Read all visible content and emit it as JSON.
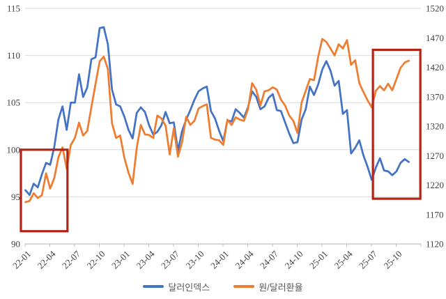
{
  "chart_data": {
    "type": "line",
    "title": "",
    "x_axis": {
      "tick_labels": [
        "22-01",
        "22-04",
        "22-07",
        "22-10",
        "23-01",
        "23-04",
        "23-07",
        "23-10",
        "24-01",
        "24-04",
        "24-07",
        "24-10",
        "25-01",
        "25-04",
        "25-07",
        "25-10"
      ],
      "label_rotation_deg": -45,
      "start_month": 0,
      "step_months_per_point": 0.5,
      "months_per_tick": 3
    },
    "y_left": {
      "tick_labels": [
        "115",
        "110",
        "105",
        "100",
        "95",
        "90"
      ],
      "min": 90,
      "max": 115,
      "step": 5
    },
    "y_right": {
      "tick_labels": [
        "1520",
        "1470",
        "1420",
        "1370",
        "1320",
        "1270",
        "1220",
        "1170",
        "1120"
      ],
      "min": 1120,
      "max": 1520,
      "step": 50
    },
    "grid": "horizontal",
    "legend_position": "bottom",
    "series": [
      {
        "name": "달러인덱스",
        "axis": "left",
        "color": "#4472C4",
        "values": [
          95.7,
          95.2,
          96.4,
          96.0,
          97.4,
          98.6,
          98.4,
          100.3,
          103.2,
          104.6,
          102.1,
          105.0,
          105.0,
          108.0,
          105.6,
          106.6,
          109.6,
          109.8,
          112.9,
          113.0,
          111.2,
          106.4,
          104.8,
          104.6,
          103.5,
          102.1,
          101.2,
          103.9,
          104.5,
          104.0,
          102.6,
          101.6,
          101.9,
          102.6,
          104.0,
          102.8,
          102.9,
          99.9,
          102.0,
          103.2,
          104.2,
          105.3,
          106.2,
          106.5,
          106.7,
          104.1,
          103.3,
          102.0,
          100.9,
          103.1,
          103.0,
          104.3,
          103.9,
          103.4,
          104.5,
          106.2,
          105.6,
          104.3,
          104.6,
          105.5,
          105.9,
          104.2,
          104.1,
          102.9,
          101.7,
          100.7,
          100.8,
          103.2,
          104.3,
          106.7,
          105.8,
          106.9,
          108.5,
          109.4,
          108.4,
          106.8,
          107.3,
          103.8,
          104.2,
          99.6,
          100.2,
          101.0,
          99.4,
          98.2,
          96.8,
          98.1,
          99.1,
          97.8,
          97.7,
          97.3,
          97.7,
          98.6,
          99.0,
          98.7
        ]
      },
      {
        "name": "원/달러환율",
        "axis": "right",
        "color": "#ED7D31",
        "values": [
          1191,
          1193,
          1206,
          1198,
          1203,
          1240,
          1214,
          1232,
          1267,
          1284,
          1248,
          1288,
          1300,
          1326,
          1304,
          1312,
          1352,
          1392,
          1430,
          1438,
          1417,
          1325,
          1300,
          1304,
          1266,
          1241,
          1222,
          1283,
          1322,
          1306,
          1305,
          1300,
          1338,
          1333,
          1321,
          1272,
          1316,
          1268,
          1293,
          1336,
          1322,
          1329,
          1350,
          1354,
          1357,
          1300,
          1297,
          1296,
          1288,
          1331,
          1322,
          1335,
          1331,
          1329,
          1349,
          1393,
          1382,
          1355,
          1379,
          1381,
          1386,
          1382,
          1365,
          1355,
          1338,
          1329,
          1308,
          1360,
          1380,
          1400,
          1398,
          1437,
          1468,
          1463,
          1452,
          1440,
          1459,
          1452,
          1466,
          1424,
          1432,
          1393,
          1378,
          1364,
          1352,
          1380,
          1388,
          1381,
          1392,
          1381,
          1400,
          1419,
          1428,
          1431
        ]
      }
    ],
    "annotations": [
      {
        "type": "rect",
        "label": "highlight-early-2022",
        "color": "#B22318",
        "x_from_month": -0.55,
        "x_to_month": 5.1,
        "y_from_left": 91.35,
        "y_to_left": 100.0
      },
      {
        "type": "rect",
        "label": "highlight-mid-2025-to-now",
        "color": "#B22318",
        "x_from_month": 42.15,
        "x_to_month": 47.9,
        "y_from_left": 94.8,
        "y_to_left": 110.6
      }
    ],
    "colors": {
      "gridline": "#D9D9D9",
      "axis_line": "#BFBFBF",
      "tick_label": "#404040",
      "legend_text": "#595959",
      "background": "#FFFFFF"
    }
  }
}
